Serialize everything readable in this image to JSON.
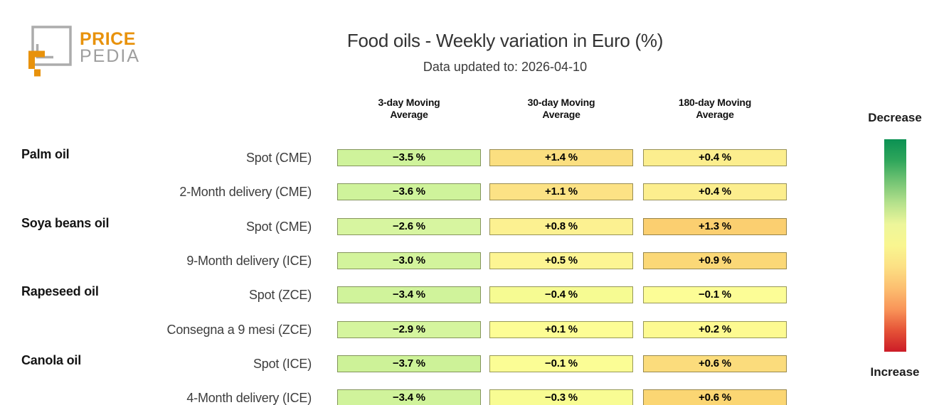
{
  "logo": {
    "brand_top": "PRICE",
    "brand_bottom": "PEDIA",
    "orange": "#E8920C",
    "gray": "#ACACAC"
  },
  "header": {
    "title": "Food oils - Weekly variation in Euro (%)",
    "subtitle": "Data updated to: 2026-04-10"
  },
  "legend": {
    "top_label": "Decrease",
    "bottom_label": "Increase",
    "gradient": [
      "#0b9153",
      "#2fa65b",
      "#74c474",
      "#b5e18c",
      "#edf69a",
      "#f9f690",
      "#fce084",
      "#fcbf70",
      "#f99559",
      "#e55337",
      "#cc1c27"
    ]
  },
  "chart_data": {
    "type": "heatmap",
    "title": "Food oils - Weekly variation in Euro (%)",
    "subtitle": "Data updated to: 2026-04-10",
    "unit": "percent weekly variation in Euro",
    "columns": [
      "3-day Moving\nAverage",
      "30-day Moving\nAverage",
      "180-day Moving\nAverage"
    ],
    "value_range_hint": [
      -3.7,
      1.4
    ],
    "legend_orientation": "vertical-right, green=decrease (top) to red=increase (bottom)",
    "rows": [
      {
        "group": "Palm oil",
        "label": "Spot (CME)",
        "values": [
          -3.5,
          1.4,
          0.4
        ],
        "colors": [
          "#cff39b",
          "#fbdf80",
          "#fcee8e"
        ]
      },
      {
        "group": "",
        "label": "2-Month delivery (CME)",
        "values": [
          -3.6,
          1.1,
          0.4
        ],
        "colors": [
          "#cff39b",
          "#fce285",
          "#fcee8e"
        ]
      },
      {
        "group": "Soya beans oil",
        "label": "Spot (CME)",
        "values": [
          -2.6,
          0.8,
          1.3
        ],
        "colors": [
          "#d7f5a0",
          "#fcf191",
          "#fbcf70"
        ]
      },
      {
        "group": "",
        "label": "9-Month delivery (ICE)",
        "values": [
          -3.0,
          0.5,
          0.9
        ],
        "colors": [
          "#d3f49c",
          "#fdf593",
          "#fbd877"
        ]
      },
      {
        "group": "Rapeseed oil",
        "label": "Spot (ZCE)",
        "values": [
          -3.4,
          -0.4,
          -0.1
        ],
        "colors": [
          "#d0f39b",
          "#f6fb92",
          "#fcfd96"
        ]
      },
      {
        "group": "",
        "label": "Consegna a 9 mesi (ZCE)",
        "values": [
          -2.9,
          0.1,
          0.2
        ],
        "colors": [
          "#d5f59e",
          "#fdfd95",
          "#fdfa91"
        ]
      },
      {
        "group": "Canola oil",
        "label": "Spot (ICE)",
        "values": [
          -3.7,
          -0.1,
          0.6
        ],
        "colors": [
          "#cdf298",
          "#fbfd95",
          "#fbdc7c"
        ]
      },
      {
        "group": "",
        "label": "4-Month delivery (ICE)",
        "values": [
          -3.4,
          -0.3,
          0.6
        ],
        "colors": [
          "#d0f39b",
          "#f8fc93",
          "#fbd673"
        ]
      }
    ]
  }
}
